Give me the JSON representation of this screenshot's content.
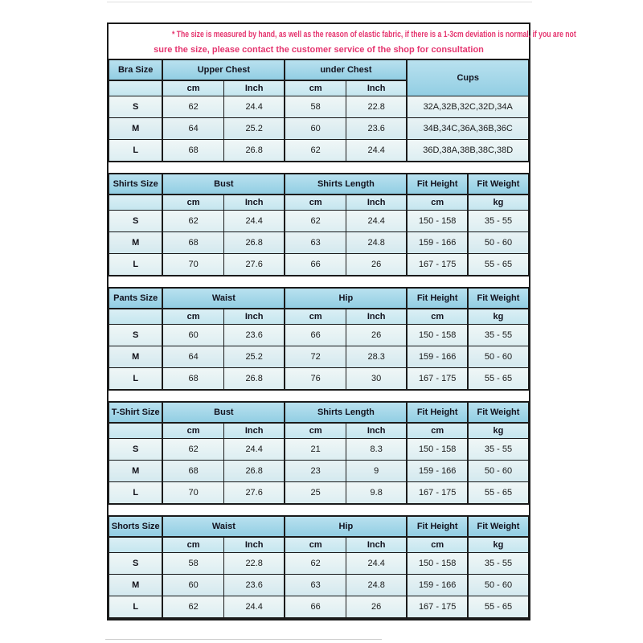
{
  "note": {
    "line1": "* The size is measured by hand, as well as the reason of elastic fabric, if there is a 1-3cm deviation is normal, if you are not",
    "line2": "sure the size, please contact the customer service of the shop for consultation"
  },
  "colors": {
    "notePink": "#e5356f",
    "borderDark": "#1b1b1b",
    "headerBlueTop": "#b9e1ef",
    "headerBlueBottom": "#92cee3",
    "subBlueTop": "#dbeff5",
    "subBlueBottom": "#c5e6ef",
    "rowTop": "#eff6f6",
    "rowBottom": "#dceef2",
    "rowAltTop": "#e8f2f4",
    "rowAltBottom": "#d3e9ef",
    "textDark": "#12121e",
    "faintLine": "#e0e0e0",
    "faintLine2": "#cfcfcf"
  },
  "tables": [
    {
      "name": "bra",
      "columns": [
        {
          "kind": "size",
          "label": "Bra Size"
        },
        {
          "kind": "group",
          "label": "Upper Chest",
          "subs": [
            "cm",
            "Inch"
          ]
        },
        {
          "kind": "group",
          "label": "under Chest",
          "subs": [
            "cm",
            "Inch"
          ]
        },
        {
          "kind": "wide",
          "label": "Cups"
        }
      ],
      "rows": [
        {
          "size": "S",
          "cells": [
            "62",
            "24.4",
            "58",
            "22.8",
            "32A,32B,32C,32D,34A"
          ]
        },
        {
          "size": "M",
          "cells": [
            "64",
            "25.2",
            "60",
            "23.6",
            "34B,34C,36A,36B,36C"
          ]
        },
        {
          "size": "L",
          "cells": [
            "68",
            "26.8",
            "62",
            "24.4",
            "36D,38A,38B,38C,38D"
          ]
        }
      ]
    },
    {
      "name": "shirts",
      "columns": [
        {
          "kind": "size",
          "label": "Shirts Size"
        },
        {
          "kind": "group",
          "label": "Bust",
          "subs": [
            "cm",
            "Inch"
          ]
        },
        {
          "kind": "group",
          "label": "Shirts Length",
          "subs": [
            "cm",
            "Inch"
          ]
        },
        {
          "kind": "single",
          "label": "Fit Height",
          "sub": "cm"
        },
        {
          "kind": "single",
          "label": "Fit Weight",
          "sub": "kg"
        }
      ],
      "rows": [
        {
          "size": "S",
          "cells": [
            "62",
            "24.4",
            "62",
            "24.4",
            "150 - 158",
            "35 - 55"
          ]
        },
        {
          "size": "M",
          "cells": [
            "68",
            "26.8",
            "63",
            "24.8",
            "159 - 166",
            "50 - 60"
          ]
        },
        {
          "size": "L",
          "cells": [
            "70",
            "27.6",
            "66",
            "26",
            "167 - 175",
            "55 - 65"
          ]
        }
      ]
    },
    {
      "name": "pants",
      "columns": [
        {
          "kind": "size",
          "label": "Pants Size"
        },
        {
          "kind": "group",
          "label": "Waist",
          "subs": [
            "cm",
            "Inch"
          ]
        },
        {
          "kind": "group",
          "label": "Hip",
          "subs": [
            "cm",
            "Inch"
          ]
        },
        {
          "kind": "single",
          "label": "Fit Height",
          "sub": "cm"
        },
        {
          "kind": "single",
          "label": "Fit Weight",
          "sub": "kg"
        }
      ],
      "rows": [
        {
          "size": "S",
          "cells": [
            "60",
            "23.6",
            "66",
            "26",
            "150 - 158",
            "35 - 55"
          ]
        },
        {
          "size": "M",
          "cells": [
            "64",
            "25.2",
            "72",
            "28.3",
            "159 - 166",
            "50 - 60"
          ]
        },
        {
          "size": "L",
          "cells": [
            "68",
            "26.8",
            "76",
            "30",
            "167 - 175",
            "55 - 65"
          ]
        }
      ]
    },
    {
      "name": "tshirt",
      "columns": [
        {
          "kind": "size",
          "label": "T-Shirt Size"
        },
        {
          "kind": "group",
          "label": "Bust",
          "subs": [
            "cm",
            "Inch"
          ]
        },
        {
          "kind": "group",
          "label": "Shirts Length",
          "subs": [
            "cm",
            "Inch"
          ]
        },
        {
          "kind": "single",
          "label": "Fit Height",
          "sub": "cm"
        },
        {
          "kind": "single",
          "label": "Fit Weight",
          "sub": "kg"
        }
      ],
      "rows": [
        {
          "size": "S",
          "cells": [
            "62",
            "24.4",
            "21",
            "8.3",
            "150 - 158",
            "35 - 55"
          ]
        },
        {
          "size": "M",
          "cells": [
            "68",
            "26.8",
            "23",
            "9",
            "159 - 166",
            "50 - 60"
          ]
        },
        {
          "size": "L",
          "cells": [
            "70",
            "27.6",
            "25",
            "9.8",
            "167 - 175",
            "55 - 65"
          ]
        }
      ]
    },
    {
      "name": "shorts",
      "columns": [
        {
          "kind": "size",
          "label": "Shorts Size"
        },
        {
          "kind": "group",
          "label": "Waist",
          "subs": [
            "cm",
            "Inch"
          ]
        },
        {
          "kind": "group",
          "label": "Hip",
          "subs": [
            "cm",
            "Inch"
          ]
        },
        {
          "kind": "single",
          "label": "Fit Height",
          "sub": "cm"
        },
        {
          "kind": "single",
          "label": "Fit Weight",
          "sub": "kg"
        }
      ],
      "rows": [
        {
          "size": "S",
          "cells": [
            "58",
            "22.8",
            "62",
            "24.4",
            "150 - 158",
            "35 - 55"
          ]
        },
        {
          "size": "M",
          "cells": [
            "60",
            "23.6",
            "63",
            "24.8",
            "159 - 166",
            "50 - 60"
          ]
        },
        {
          "size": "L",
          "cells": [
            "62",
            "24.4",
            "66",
            "26",
            "167 - 175",
            "55 - 65"
          ]
        }
      ]
    }
  ]
}
